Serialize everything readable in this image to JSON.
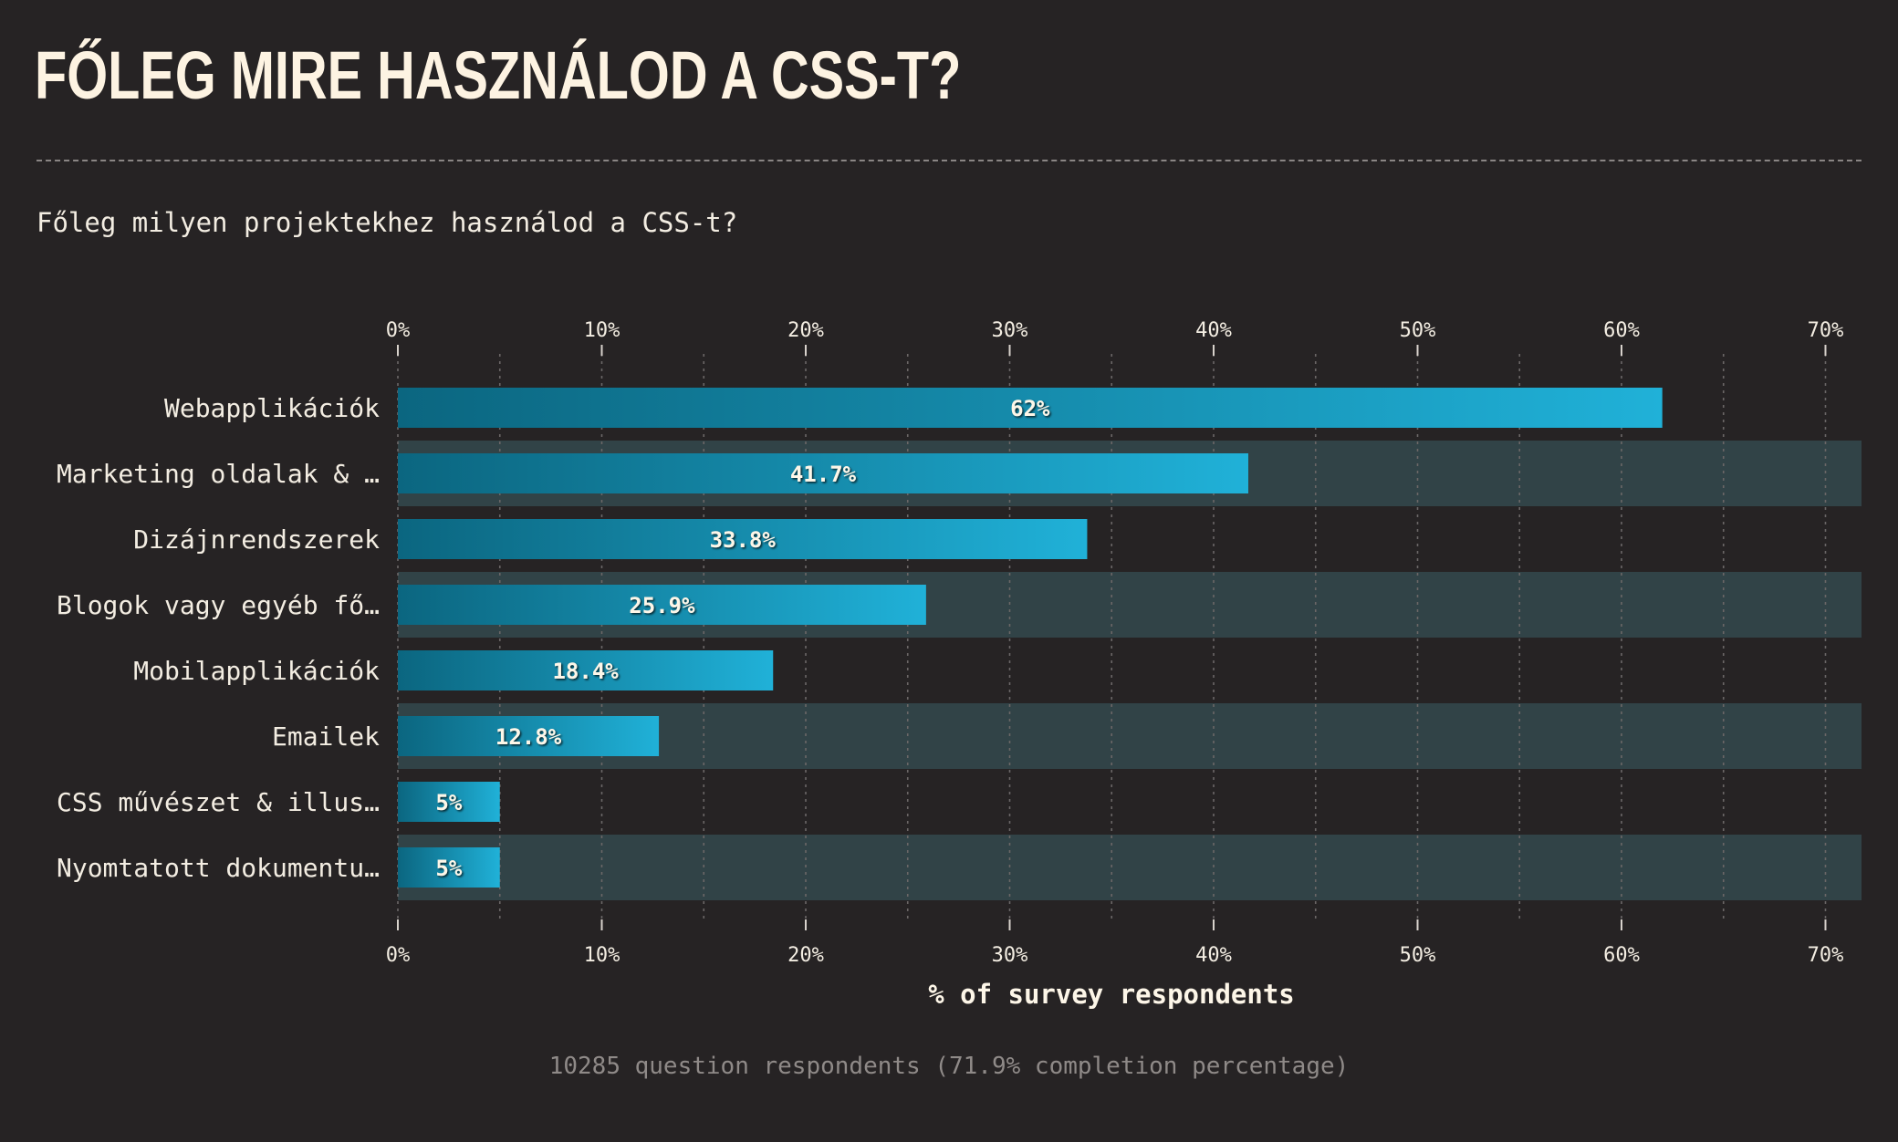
{
  "header": {
    "title": "FŐLEG MIRE HASZNÁLOD A CSS-T?",
    "question": "Főleg milyen projektekhez használod a CSS-t?"
  },
  "chart_data": {
    "type": "bar",
    "orientation": "horizontal",
    "categories": [
      "Webapplikációk",
      "Marketing oldalak & …",
      "Dizájnrendszerek",
      "Blogok vagy egyéb fő…",
      "Mobilapplikációk",
      "Emailek",
      "CSS művészet & illus…",
      "Nyomtatott dokumentu…"
    ],
    "values": [
      62,
      41.7,
      33.8,
      25.9,
      18.4,
      12.8,
      5,
      5
    ],
    "value_labels": [
      "62%",
      "41.7%",
      "33.8%",
      "25.9%",
      "18.4%",
      "12.8%",
      "5%",
      "5%"
    ],
    "xlim": [
      0,
      72
    ],
    "xticks": [
      0,
      10,
      20,
      30,
      40,
      50,
      60,
      70
    ],
    "xtick_labels": [
      "0%",
      "10%",
      "20%",
      "30%",
      "40%",
      "50%",
      "60%",
      "70%"
    ],
    "xlabel": "% of survey respondents",
    "ylabel": "",
    "grid": true,
    "axis_position": "top and bottom",
    "colors": {
      "bar_start": "#0b6680",
      "bar_end": "#20b1d8",
      "row_band": "#314347",
      "grid": "#6b6767",
      "background": "#262324",
      "text": "#fdf6e8"
    }
  },
  "footer": {
    "note": "10285 question respondents (71.9% completion percentage)"
  }
}
